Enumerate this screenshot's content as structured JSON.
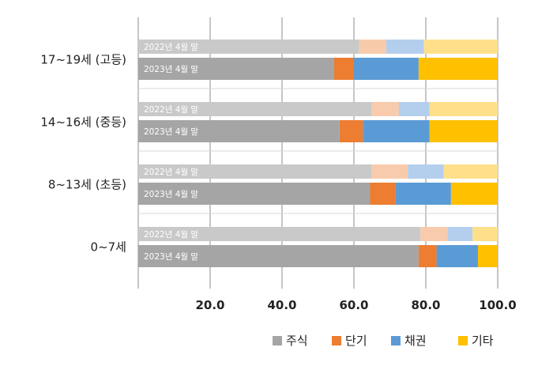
{
  "chart_data": {
    "type": "bar",
    "orientation": "horizontal",
    "stacked": true,
    "xlim": [
      0,
      100
    ],
    "x_ticks": [
      "20.0",
      "40.0",
      "60.0",
      "80.0",
      "100.0"
    ],
    "series_names": [
      "주식",
      "단기",
      "채권",
      "기타"
    ],
    "colors_2023": [
      "#a5a5a5",
      "#ed7d31",
      "#5b9bd5",
      "#ffc000"
    ],
    "colors_2022": [
      "#c9c9c9",
      "#f8cbad",
      "#b4cfee",
      "#ffe08a"
    ],
    "groups": [
      {
        "category": "17~19세 (고등)",
        "bars": [
          {
            "label": "2022년 4월 말",
            "values": [
              61.5,
              7.5,
              10.5,
              20.5
            ]
          },
          {
            "label": "2023년 4월 말",
            "values": [
              54.5,
              5.5,
              18.0,
              22.0
            ]
          }
        ]
      },
      {
        "category": "14~16세 (중등)",
        "bars": [
          {
            "label": "2022년 4월 말",
            "values": [
              65.0,
              7.5,
              8.5,
              19.0
            ]
          },
          {
            "label": "2023년 4월 말",
            "values": [
              56.0,
              6.5,
              18.5,
              19.0
            ]
          }
        ]
      },
      {
        "category": "8~13세 (초등)",
        "bars": [
          {
            "label": "2022년 4월 말",
            "values": [
              65.0,
              10.0,
              10.0,
              15.0
            ]
          },
          {
            "label": "2023년 4월 말",
            "values": [
              64.5,
              7.0,
              15.5,
              13.0
            ]
          }
        ]
      },
      {
        "category": "0~7세",
        "bars": [
          {
            "label": "2022년 4월 말",
            "values": [
              78.5,
              7.5,
              7.0,
              7.0
            ]
          },
          {
            "label": "2023년 4월 말",
            "values": [
              78.0,
              5.0,
              11.5,
              5.5
            ]
          }
        ]
      }
    ]
  }
}
